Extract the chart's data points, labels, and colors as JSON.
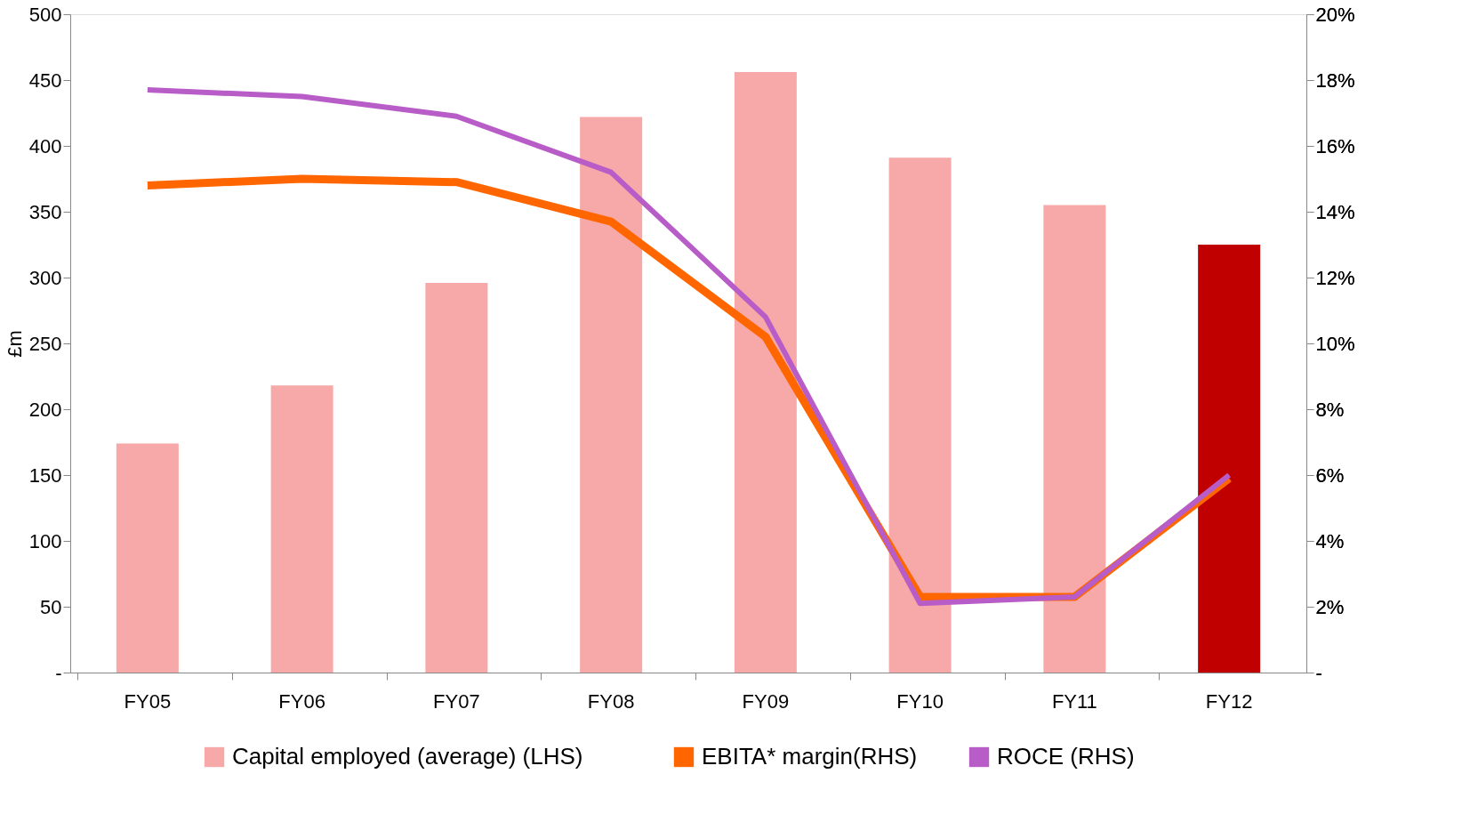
{
  "chart_data": {
    "type": "bar",
    "ylabel": "£m",
    "categories": [
      "FY05",
      "FY06",
      "FY07",
      "FY08",
      "FY09",
      "FY10",
      "FY11",
      "FY12"
    ],
    "series": [
      {
        "name": "Capital employed (average) (LHS)",
        "color": "#f7a8a8",
        "colors": [
          "#f7a8a8",
          "#f7a8a8",
          "#f7a8a8",
          "#f7a8a8",
          "#f7a8a8",
          "#f7a8a8",
          "#f7a8a8",
          "#c00000"
        ],
        "values": [
          174,
          218,
          296,
          422,
          456,
          391,
          355,
          325
        ]
      },
      {
        "name": "EBITA* margin(RHS)",
        "type": "line",
        "axis": "y2",
        "color": "#ff6600",
        "values": [
          14.8,
          15.0,
          14.9,
          13.7,
          10.2,
          2.3,
          2.3,
          5.9
        ]
      },
      {
        "name": "ROCE (RHS)",
        "type": "line",
        "axis": "y2",
        "color": "#b85cc8",
        "values": [
          17.7,
          17.5,
          16.9,
          15.2,
          10.8,
          2.1,
          2.3,
          6.0
        ]
      }
    ],
    "ylim": [
      0,
      500
    ],
    "yticks": [
      {
        "value": 0,
        "label": "-"
      },
      50,
      100,
      150,
      200,
      250,
      300,
      350,
      400,
      450,
      500
    ],
    "y2lim": [
      0,
      20
    ],
    "y2ticks": [
      {
        "value": 0,
        "label": "-"
      },
      {
        "value": 2,
        "label": "2%"
      },
      {
        "value": 4,
        "label": "4%"
      },
      {
        "value": 6,
        "label": "6%"
      },
      {
        "value": 8,
        "label": "8%"
      },
      {
        "value": 10,
        "label": "10%"
      },
      {
        "value": 12,
        "label": "12%"
      },
      {
        "value": 14,
        "label": "14%"
      },
      {
        "value": 16,
        "label": "16%"
      },
      {
        "value": 18,
        "label": "18%"
      },
      {
        "value": 20,
        "label": "20%"
      }
    ],
    "grid": false,
    "legend": "bottom"
  }
}
